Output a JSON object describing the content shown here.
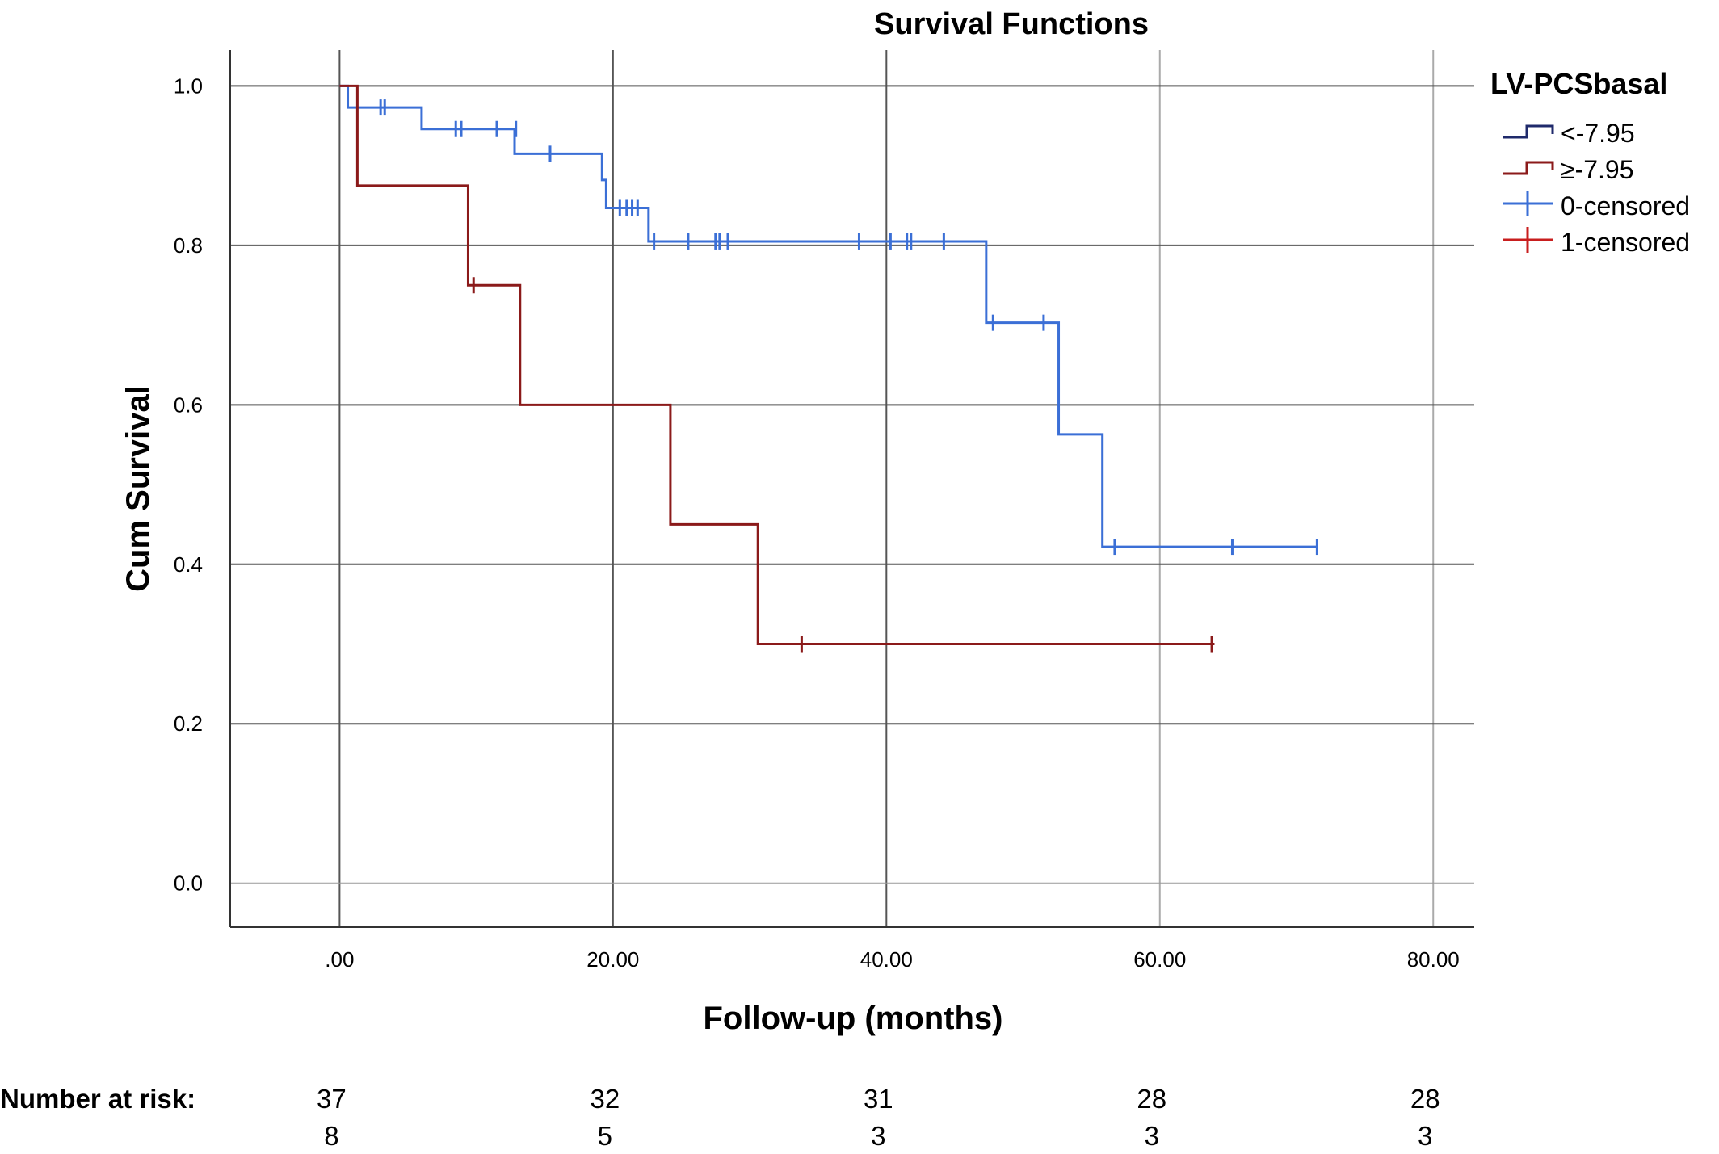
{
  "chart_data": {
    "type": "line",
    "title": "Survival Functions",
    "xlabel": "Follow-up (months)",
    "ylabel": "Cum Survival",
    "xlim": [
      -8,
      83
    ],
    "ylim": [
      -0.055,
      1.045
    ],
    "x_ticks": [
      0,
      20,
      40,
      60,
      80
    ],
    "x_tick_labels": [
      ".00",
      "20.00",
      "40.00",
      "60.00",
      "80.00"
    ],
    "y_ticks": [
      0,
      0.2,
      0.4,
      0.6,
      0.8,
      1.0
    ],
    "y_tick_labels": [
      "0.0",
      "0.2",
      "0.4",
      "0.6",
      "0.8",
      "1.0"
    ],
    "grid": true,
    "legend": {
      "title": "LV-PCSbasal",
      "placement": "top-right",
      "entries": [
        {
          "label": "<-7.95",
          "kind": "step",
          "color": "#1f2a6b"
        },
        {
          "label": "≥-7.95",
          "kind": "step",
          "color": "#8b1a1a"
        },
        {
          "label": "0-censored",
          "kind": "censor",
          "color": "#3b6fd6"
        },
        {
          "label": "1-censored",
          "kind": "censor",
          "color": "#c81e1e"
        }
      ]
    },
    "series": [
      {
        "name": "<-7.95",
        "color": "#3b6fd6",
        "steps": [
          [
            0,
            1.0
          ],
          [
            0.6,
            0.973
          ],
          [
            6.0,
            0.946
          ],
          [
            12.8,
            0.915
          ],
          [
            19.2,
            0.882
          ],
          [
            19.5,
            0.847
          ],
          [
            22.6,
            0.805
          ],
          [
            47.3,
            0.703
          ],
          [
            52.6,
            0.563
          ],
          [
            55.8,
            0.422
          ],
          [
            71.5,
            0.422
          ]
        ],
        "censored": [
          [
            3.0,
            0.973
          ],
          [
            3.3,
            0.973
          ],
          [
            8.5,
            0.946
          ],
          [
            8.9,
            0.946
          ],
          [
            11.5,
            0.946
          ],
          [
            12.9,
            0.946
          ],
          [
            15.4,
            0.915
          ],
          [
            20.5,
            0.847
          ],
          [
            21.0,
            0.847
          ],
          [
            21.4,
            0.847
          ],
          [
            21.8,
            0.847
          ],
          [
            23.0,
            0.805
          ],
          [
            25.5,
            0.805
          ],
          [
            27.5,
            0.805
          ],
          [
            27.8,
            0.805
          ],
          [
            28.4,
            0.805
          ],
          [
            38.0,
            0.805
          ],
          [
            40.3,
            0.805
          ],
          [
            41.5,
            0.805
          ],
          [
            41.8,
            0.805
          ],
          [
            44.2,
            0.805
          ],
          [
            47.8,
            0.703
          ],
          [
            51.5,
            0.703
          ],
          [
            56.7,
            0.422
          ],
          [
            65.3,
            0.422
          ],
          [
            71.5,
            0.422
          ]
        ]
      },
      {
        "name": "≥-7.95",
        "color": "#8b1a1a",
        "steps": [
          [
            0,
            1.0
          ],
          [
            1.3,
            0.875
          ],
          [
            9.4,
            0.75
          ],
          [
            13.2,
            0.6
          ],
          [
            24.2,
            0.45
          ],
          [
            30.6,
            0.3
          ],
          [
            64.0,
            0.3
          ]
        ],
        "censored": [
          [
            9.8,
            0.75
          ],
          [
            33.8,
            0.3
          ],
          [
            63.8,
            0.3
          ]
        ]
      }
    ],
    "number_at_risk": {
      "label": "Number at risk:",
      "times": [
        0,
        20,
        40,
        60,
        80
      ],
      "rows": [
        [
          "37",
          "32",
          "31",
          "28",
          "28"
        ],
        [
          "8",
          "5",
          "3",
          "3",
          "3"
        ]
      ]
    }
  }
}
